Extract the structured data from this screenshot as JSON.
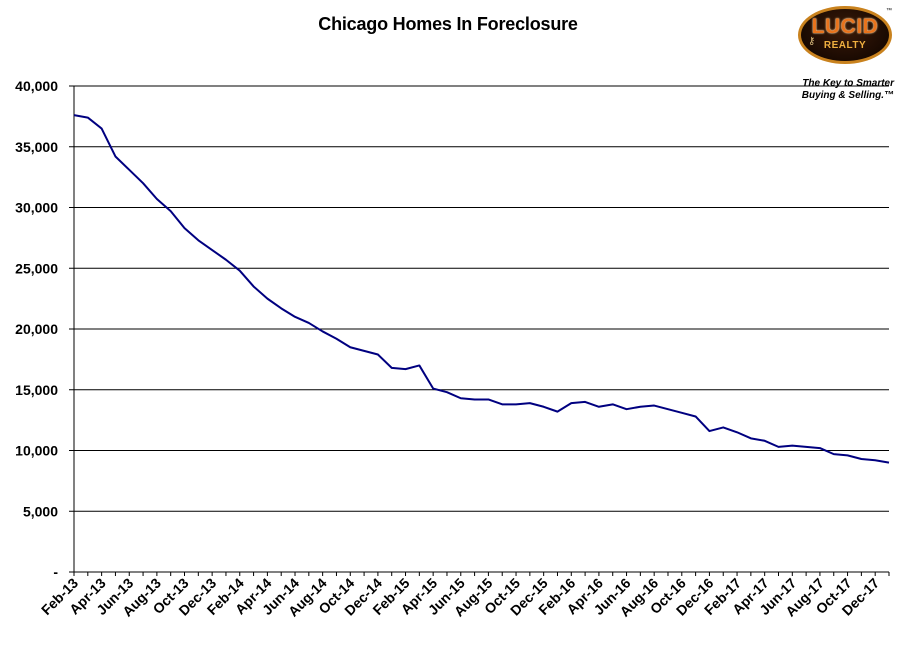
{
  "chart_data": {
    "type": "line",
    "title": "Chicago Homes In Foreclosure",
    "xlabel": "",
    "ylabel": "",
    "ylim": [
      0,
      40000
    ],
    "yticks": [
      0,
      5000,
      10000,
      15000,
      20000,
      25000,
      30000,
      35000,
      40000
    ],
    "ytick_labels": [
      "-",
      "5,000",
      "10,000",
      "15,000",
      "20,000",
      "25,000",
      "30,000",
      "35,000",
      "40,000"
    ],
    "grid": "horizontal",
    "series_color": "#000080",
    "x": [
      "Feb-13",
      "Mar-13",
      "Apr-13",
      "May-13",
      "Jun-13",
      "Jul-13",
      "Aug-13",
      "Sep-13",
      "Oct-13",
      "Nov-13",
      "Dec-13",
      "Jan-14",
      "Feb-14",
      "Mar-14",
      "Apr-14",
      "May-14",
      "Jun-14",
      "Jul-14",
      "Aug-14",
      "Sep-14",
      "Oct-14",
      "Nov-14",
      "Dec-14",
      "Jan-15",
      "Feb-15",
      "Mar-15",
      "Apr-15",
      "May-15",
      "Jun-15",
      "Jul-15",
      "Aug-15",
      "Sep-15",
      "Oct-15",
      "Nov-15",
      "Dec-15",
      "Jan-16",
      "Feb-16",
      "Mar-16",
      "Apr-16",
      "May-16",
      "Jun-16",
      "Jul-16",
      "Aug-16",
      "Sep-16",
      "Oct-16",
      "Nov-16",
      "Dec-16",
      "Jan-17",
      "Feb-17",
      "Mar-17",
      "Apr-17",
      "May-17",
      "Jun-17",
      "Jul-17",
      "Aug-17",
      "Sep-17",
      "Oct-17",
      "Nov-17",
      "Dec-17",
      "Jan-18"
    ],
    "x_tick_labels": [
      "Feb-13",
      "Apr-13",
      "Jun-13",
      "Aug-13",
      "Oct-13",
      "Dec-13",
      "Feb-14",
      "Apr-14",
      "Jun-14",
      "Aug-14",
      "Oct-14",
      "Dec-14",
      "Feb-15",
      "Apr-15",
      "Jun-15",
      "Aug-15",
      "Oct-15",
      "Dec-15",
      "Feb-16",
      "Apr-16",
      "Jun-16",
      "Aug-16",
      "Oct-16",
      "Dec-16",
      "Feb-17",
      "Apr-17",
      "Jun-17",
      "Aug-17",
      "Oct-17",
      "Dec-17"
    ],
    "series": [
      {
        "values": [
          37600,
          37400,
          36500,
          34200,
          33100,
          32000,
          30700,
          29700,
          28300,
          27300,
          26500,
          25700,
          24800,
          23500,
          22500,
          21700,
          21000,
          20500,
          19800,
          19200,
          18500,
          18200,
          17900,
          16800,
          16700,
          17000,
          15100,
          14800,
          14300,
          14200,
          14200,
          13800,
          13800,
          13900,
          13600,
          13200,
          13900,
          14000,
          13600,
          13800,
          13400,
          13600,
          13700,
          13400,
          13100,
          12800,
          11600,
          11900,
          11500,
          11000,
          10800,
          10300,
          10400,
          10300,
          10200,
          9700,
          9600,
          9300,
          9200,
          9000
        ]
      }
    ]
  },
  "logo": {
    "name": "LUCID",
    "sub": "REALTY",
    "tm": "™",
    "tagline_line1": "The Key to Smarter",
    "tagline_line2": "Buying & Selling.™"
  }
}
